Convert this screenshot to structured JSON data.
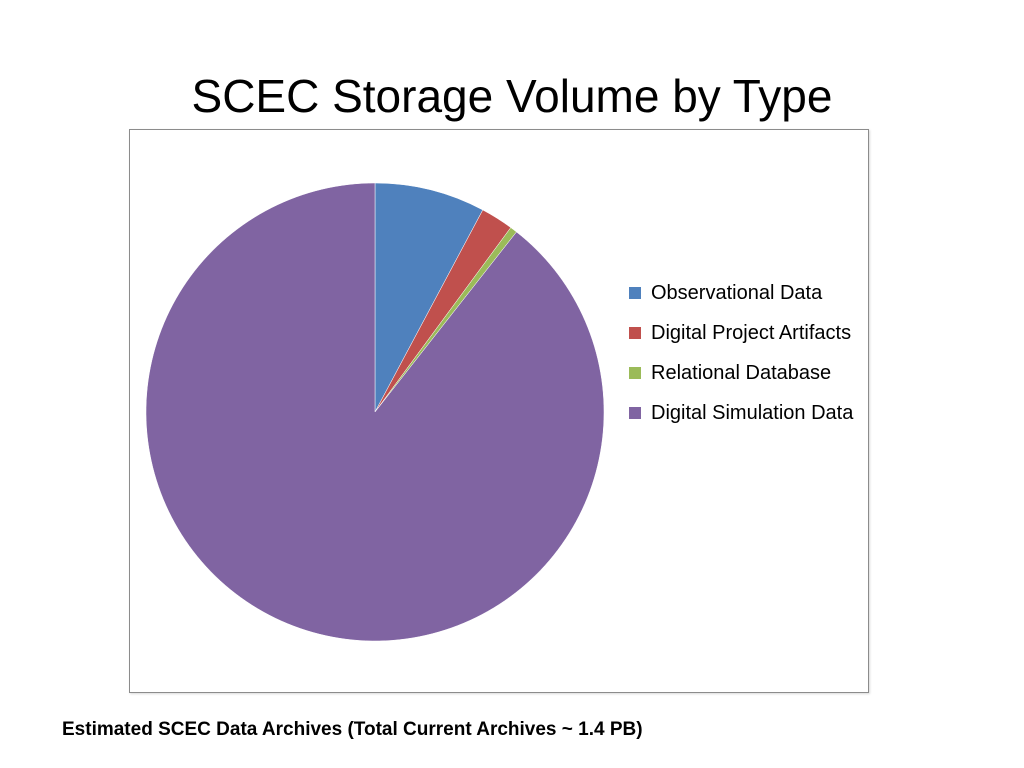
{
  "slide": {
    "title": "SCEC Storage Volume by Type",
    "caption": "Estimated SCEC Data Archives (Total Current Archives ~ 1.4 PB)"
  },
  "chart_data": {
    "type": "pie",
    "title": "SCEC Storage Volume by Type",
    "legend_position": "right",
    "start_angle_deg": 0,
    "direction": "clockwise",
    "slices": [
      {
        "label": "Observational Data",
        "value": 7.8,
        "color": "#4F81BD"
      },
      {
        "label": "Digital Project Artifacts",
        "value": 2.3,
        "color": "#C0504D"
      },
      {
        "label": "Relational Database",
        "value": 0.5,
        "color": "#9BBB59"
      },
      {
        "label": "Digital Simulation Data",
        "value": 89.4,
        "color": "#8064A2"
      }
    ]
  }
}
